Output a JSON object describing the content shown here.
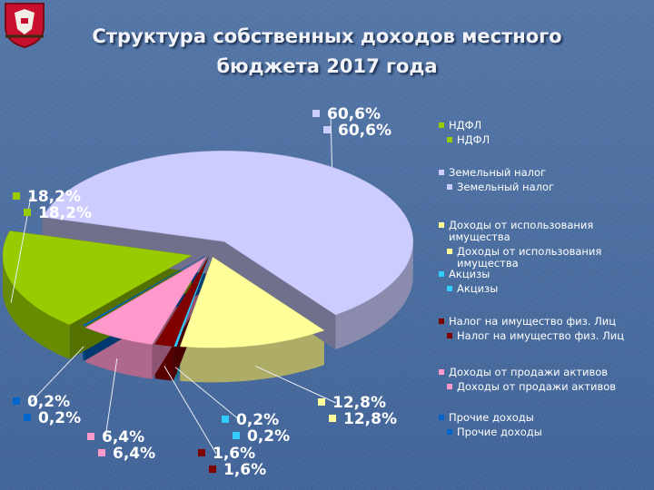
{
  "title_line1": "Структура собственных доходов местного",
  "title_line2": "бюджета 2017 года",
  "chart_data": {
    "type": "pie",
    "title": "Структура собственных доходов местного бюджета 2017 года",
    "categories": [
      "НДФЛ",
      "Земельный налог",
      "Доходы от использования имущества",
      "Акцизы",
      "Налог на имущество физ. Лиц",
      "Доходы от продажи активов",
      "Прочие доходы"
    ],
    "values": [
      18.2,
      60.6,
      12.8,
      0.2,
      1.6,
      6.4,
      0.2
    ],
    "value_labels": [
      "18,2%",
      "60,6%",
      "12,8%",
      "0,2%",
      "1,6%",
      "6,4%",
      "0,2%"
    ],
    "colors": [
      "#99cc00",
      "#ccccff",
      "#ffff99",
      "#33ccff",
      "#800000",
      "#ff99cc",
      "#0066cc"
    ],
    "legend_position": "right"
  },
  "legend": [
    {
      "label": "НДФЛ",
      "color": "#99cc00"
    },
    {
      "label": "Земельный налог",
      "color": "#ccccff"
    },
    {
      "label": "Доходы от использования имущества",
      "color": "#ffff99"
    },
    {
      "label": "Акцизы",
      "color": "#33ccff"
    },
    {
      "label": "Налог на имущество физ. Лиц",
      "color": "#800000"
    },
    {
      "label": "Доходы от продажи активов",
      "color": "#ff99cc"
    },
    {
      "label": "Прочие доходы",
      "color": "#0066cc"
    }
  ]
}
